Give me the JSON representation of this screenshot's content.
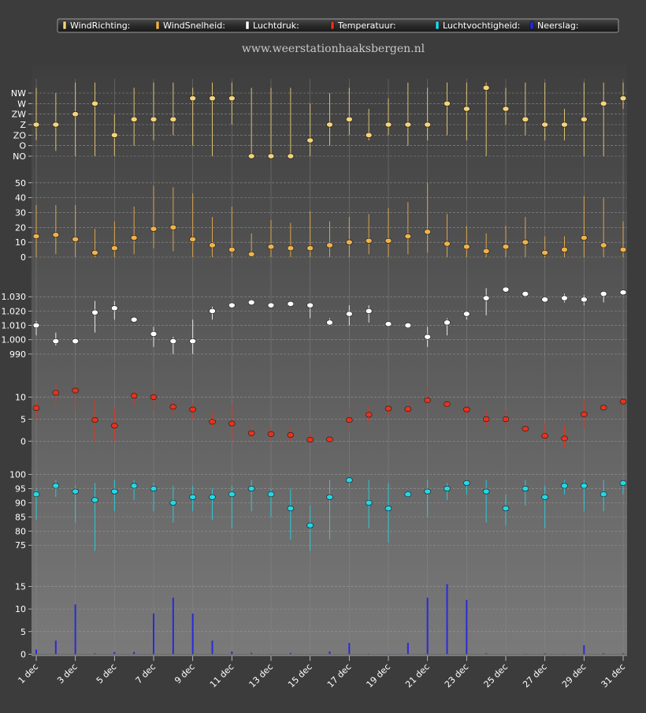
{
  "header": {
    "site": "www.weerstationhaaksbergen.nl"
  },
  "legend": [
    {
      "label": "WindRichting:",
      "color": "#f5d47a"
    },
    {
      "label": "WindSnelheid:",
      "color": "#f0b24a"
    },
    {
      "label": "Luchtdruk:",
      "color": "#ffffff"
    },
    {
      "label": "Temperatuur:",
      "color": "#e8321c"
    },
    {
      "label": "Luchtvochtigheid:",
      "color": "#22d8e8"
    },
    {
      "label": "Neerslag:",
      "color": "#2a2ad8"
    }
  ],
  "chart_data": [
    {
      "type": "scatter",
      "name": "WindRichting",
      "color": "#f5d47a",
      "x": [
        "1 dec",
        "2 dec",
        "3 dec",
        "4 dec",
        "5 dec",
        "6 dec",
        "7 dec",
        "8 dec",
        "9 dec",
        "10 dec",
        "11 dec",
        "12 dec",
        "13 dec",
        "14 dec",
        "15 dec",
        "16 dec",
        "17 dec",
        "18 dec",
        "19 dec",
        "20 dec",
        "21 dec",
        "22 dec",
        "23 dec",
        "24 dec",
        "25 dec",
        "26 dec",
        "27 dec",
        "28 dec",
        "29 dec",
        "30 dec",
        "31 dec"
      ],
      "categories_order": [
        "NO",
        "O",
        "ZO",
        "Z",
        "ZW",
        "W",
        "NW"
      ],
      "yticks": [
        "NW",
        "W",
        "ZW",
        "Z",
        "ZO",
        "O",
        "NO"
      ],
      "ylim": [
        0,
        6.2
      ],
      "values": [
        3,
        3,
        4,
        5,
        2,
        3.5,
        3.5,
        3.5,
        5.5,
        5.5,
        5.5,
        0,
        0,
        0,
        1.5,
        3,
        3.5,
        2,
        3,
        3,
        3,
        5,
        4.5,
        6.5,
        4.5,
        3.5,
        3,
        3,
        3.5,
        5,
        5.5
      ],
      "low": [
        1.5,
        0.5,
        0,
        0,
        0,
        1,
        1.5,
        2,
        1,
        0,
        3,
        0,
        0,
        0,
        0,
        1,
        2,
        1.5,
        2,
        1,
        1.5,
        2,
        1.5,
        0,
        3,
        2,
        1.5,
        1.5,
        0,
        0,
        4.5
      ],
      "high": [
        6.5,
        6,
        7,
        7,
        4,
        6.5,
        7,
        7,
        6.5,
        7,
        7,
        6.5,
        6.5,
        6.5,
        5,
        6,
        6.5,
        4.5,
        5.5,
        7,
        6.5,
        7,
        7,
        7,
        6.5,
        7,
        7,
        4.5,
        7,
        7,
        7
      ]
    },
    {
      "type": "scatter",
      "name": "WindSnelheid",
      "color": "#f0b24a",
      "x": [
        "1 dec",
        "2 dec",
        "3 dec",
        "4 dec",
        "5 dec",
        "6 dec",
        "7 dec",
        "8 dec",
        "9 dec",
        "10 dec",
        "11 dec",
        "12 dec",
        "13 dec",
        "14 dec",
        "15 dec",
        "16 dec",
        "17 dec",
        "18 dec",
        "19 dec",
        "20 dec",
        "21 dec",
        "22 dec",
        "23 dec",
        "24 dec",
        "25 dec",
        "26 dec",
        "27 dec",
        "28 dec",
        "29 dec",
        "30 dec",
        "31 dec"
      ],
      "yticks": [
        0,
        10,
        20,
        30,
        40,
        50
      ],
      "ylim": [
        0,
        52
      ],
      "values": [
        14,
        15,
        12,
        3,
        6,
        13,
        19,
        20,
        12,
        8,
        5,
        2,
        7,
        6,
        6,
        8,
        10,
        11,
        11,
        14,
        17,
        9,
        7,
        4,
        7,
        10,
        3,
        5,
        13,
        8,
        5
      ],
      "low": [
        0,
        2,
        0,
        0,
        0,
        2,
        6,
        4,
        0,
        0,
        0,
        0,
        0,
        0,
        0,
        0,
        0,
        2,
        0,
        2,
        3,
        0,
        0,
        0,
        0,
        0,
        0,
        0,
        0,
        0,
        0
      ],
      "high": [
        35,
        35,
        35,
        19,
        24,
        34,
        48,
        47,
        43,
        27,
        34,
        16,
        25,
        23,
        31,
        24,
        27,
        29,
        33,
        37,
        50,
        29,
        21,
        16,
        21,
        27,
        14,
        14,
        41,
        40,
        24
      ]
    },
    {
      "type": "scatter",
      "name": "Luchtdruk",
      "color": "#ffffff",
      "x": [
        "1 dec",
        "2 dec",
        "3 dec",
        "4 dec",
        "5 dec",
        "6 dec",
        "7 dec",
        "8 dec",
        "9 dec",
        "10 dec",
        "11 dec",
        "12 dec",
        "13 dec",
        "14 dec",
        "15 dec",
        "16 dec",
        "17 dec",
        "18 dec",
        "19 dec",
        "20 dec",
        "21 dec",
        "22 dec",
        "23 dec",
        "24 dec",
        "25 dec",
        "26 dec",
        "27 dec",
        "28 dec",
        "29 dec",
        "30 dec",
        "31 dec"
      ],
      "yticks": [
        "990",
        "1.000",
        "1.010",
        "1.020",
        "1.030"
      ],
      "ytick_values": [
        990,
        1000,
        1010,
        1020,
        1030
      ],
      "ylim": [
        985,
        1040
      ],
      "values": [
        1010,
        999,
        999,
        1019,
        1022,
        1014,
        1004,
        999,
        999,
        1020,
        1024,
        1026,
        1024,
        1025,
        1024,
        1012,
        1018,
        1020,
        1011,
        1010,
        1002,
        1012,
        1018,
        1029,
        1035,
        1032,
        1028,
        1029,
        1028,
        1032,
        1033
      ],
      "low": [
        1003,
        996,
        997,
        1005,
        1014,
        1012,
        995,
        990,
        990,
        1014,
        1022,
        1025,
        1022,
        1023,
        1015,
        1010,
        1010,
        1012,
        1010,
        1009,
        995,
        1003,
        1014,
        1017,
        1034,
        1030,
        1026,
        1026,
        1024,
        1026,
        1032
      ],
      "high": [
        1013,
        1005,
        1001,
        1027,
        1027,
        1015,
        1009,
        1002,
        1014,
        1023,
        1025,
        1027,
        1026,
        1026,
        1025,
        1015,
        1024,
        1024,
        1012,
        1011,
        1009,
        1015,
        1020,
        1036,
        1037,
        1033,
        1029,
        1032,
        1031,
        1033,
        1034
      ]
    },
    {
      "type": "scatter",
      "name": "Temperatuur",
      "color": "#e8321c",
      "x": [
        "1 dec",
        "2 dec",
        "3 dec",
        "4 dec",
        "5 dec",
        "6 dec",
        "7 dec",
        "8 dec",
        "9 dec",
        "10 dec",
        "11 dec",
        "12 dec",
        "13 dec",
        "14 dec",
        "15 dec",
        "16 dec",
        "17 dec",
        "18 dec",
        "19 dec",
        "20 dec",
        "21 dec",
        "22 dec",
        "23 dec",
        "24 dec",
        "25 dec",
        "26 dec",
        "27 dec",
        "28 dec",
        "29 dec",
        "30 dec",
        "31 dec"
      ],
      "yticks": [
        0,
        5,
        10
      ],
      "ylim": [
        -3,
        13.5
      ],
      "values": [
        7.5,
        11,
        11.5,
        4.8,
        3.5,
        10.3,
        10,
        7.8,
        7.2,
        4.4,
        4,
        1.8,
        1.6,
        1.4,
        0.3,
        0.4,
        4.8,
        6,
        7.4,
        7.3,
        9.3,
        8.4,
        7.2,
        5,
        5,
        2.8,
        1.2,
        0.6,
        6.1,
        7.6,
        9
      ],
      "low": [
        5,
        8,
        7,
        0,
        0,
        8,
        7,
        6,
        5,
        3,
        0,
        0,
        0,
        0,
        0,
        0,
        2,
        4,
        6,
        6,
        7,
        7,
        6,
        3,
        3,
        2,
        0,
        -1.5,
        3,
        7,
        8
      ],
      "high": [
        9,
        13,
        13,
        9.5,
        7.5,
        11.5,
        12,
        9,
        8.5,
        6.5,
        8.5,
        4,
        3,
        3,
        2,
        2,
        7.5,
        8,
        8,
        9,
        12.5,
        9,
        8,
        7,
        7,
        4,
        4,
        3.5,
        9.5,
        8,
        9.5
      ]
    },
    {
      "type": "scatter",
      "name": "Luchtvochtigheid",
      "color": "#22d8e8",
      "x": [
        "1 dec",
        "2 dec",
        "3 dec",
        "4 dec",
        "5 dec",
        "6 dec",
        "7 dec",
        "8 dec",
        "9 dec",
        "10 dec",
        "11 dec",
        "12 dec",
        "13 dec",
        "14 dec",
        "15 dec",
        "16 dec",
        "17 dec",
        "18 dec",
        "19 dec",
        "20 dec",
        "21 dec",
        "22 dec",
        "23 dec",
        "24 dec",
        "25 dec",
        "26 dec",
        "27 dec",
        "28 dec",
        "29 dec",
        "30 dec",
        "31 dec"
      ],
      "yticks": [
        75,
        80,
        85,
        90,
        95,
        100
      ],
      "ylim": [
        72,
        101
      ],
      "values": [
        93,
        96,
        94,
        91,
        94,
        96,
        95,
        90,
        92,
        92,
        93,
        95,
        93,
        88,
        82,
        92,
        98,
        90,
        88,
        93,
        94,
        95,
        97,
        94,
        88,
        95,
        92,
        96,
        96,
        93,
        97
      ],
      "low": [
        84,
        92,
        83,
        73,
        87,
        91,
        87,
        83,
        87,
        84,
        81,
        87,
        85,
        77,
        73,
        77,
        96,
        81,
        76,
        92,
        85,
        91,
        93,
        83,
        82,
        89,
        81,
        93,
        87,
        87,
        93
      ],
      "high": [
        95,
        98,
        96,
        97,
        98,
        98,
        97,
        96,
        96,
        95,
        96,
        98,
        95,
        95,
        89,
        98,
        98,
        98,
        97,
        94,
        98,
        97,
        98,
        98,
        93,
        98,
        96,
        98,
        98,
        98,
        98
      ]
    },
    {
      "type": "bar",
      "name": "Neerslag",
      "color": "#2a2ad8",
      "x": [
        "1 dec",
        "2 dec",
        "3 dec",
        "4 dec",
        "5 dec",
        "6 dec",
        "7 dec",
        "8 dec",
        "9 dec",
        "10 dec",
        "11 dec",
        "12 dec",
        "13 dec",
        "14 dec",
        "15 dec",
        "16 dec",
        "17 dec",
        "18 dec",
        "19 dec",
        "20 dec",
        "21 dec",
        "22 dec",
        "23 dec",
        "24 dec",
        "25 dec",
        "26 dec",
        "27 dec",
        "28 dec",
        "29 dec",
        "30 dec",
        "31 dec"
      ],
      "yticks": [
        0,
        5,
        10,
        15
      ],
      "ylim": [
        -0.1,
        17
      ],
      "values": [
        1,
        3,
        11,
        0.2,
        0.5,
        0.5,
        9,
        12.5,
        9,
        3,
        0.6,
        0.3,
        0,
        0.3,
        0,
        0.6,
        2.5,
        0,
        0,
        2.5,
        12.5,
        15.5,
        12,
        0.2,
        0,
        0,
        0.2,
        0,
        2,
        0.2,
        0.2
      ]
    }
  ],
  "xaxis": {
    "tick_labels": [
      "1 dec",
      "3 dec",
      "5 dec",
      "7 dec",
      "9 dec",
      "11 dec",
      "13 dec",
      "15 dec",
      "17 dec",
      "19 dec",
      "21 dec",
      "23 dec",
      "25 dec",
      "27 dec",
      "29 dec",
      "31 dec"
    ]
  }
}
